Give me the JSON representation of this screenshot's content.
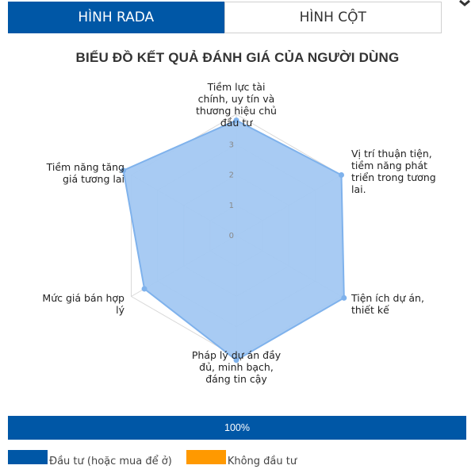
{
  "tabs": [
    {
      "label": "HÌNH RADA",
      "active": true
    },
    {
      "label": "HÌNH CỘT",
      "active": false
    }
  ],
  "chart_data": {
    "type": "radar",
    "title": "BIỂU ĐỒ KẾT QUẢ ĐÁNH GIÁ CỦA NGƯỜI DÙNG",
    "axes": [
      [
        "Tiềm lực tài",
        "chính, uy tín và",
        "thương hiệu chủ",
        "đầu tư"
      ],
      [
        "Vị trí thuận tiện,",
        "tiềm năng phát",
        "triển trong tương",
        "lai."
      ],
      [
        "Tiện ích dự án,",
        "thiết kế"
      ],
      [
        "Pháp lý dự án đầy",
        "đủ, minh bạch,",
        "đáng tin cậy"
      ],
      [
        "Mức giá bán hợp",
        "lý"
      ],
      [
        "Tiềm năng tăng",
        "giá tương lai"
      ]
    ],
    "ticks": [
      "0",
      "1",
      "2",
      "3"
    ],
    "range": [
      0,
      4
    ],
    "values": [
      3.8,
      4.0,
      4.1,
      4.1,
      3.5,
      4.3
    ],
    "colors": {
      "fill": "#a3c8f2",
      "stroke": "#7fb2ec",
      "grid": "#d9d9d9"
    }
  },
  "progress": {
    "label": "100%",
    "value": 1.0,
    "color": "#0057a6"
  },
  "legend": [
    {
      "label": "Đầu tư (hoặc mua để ở)",
      "color": "#0057a6"
    },
    {
      "label": "Không đầu tư",
      "color": "#ff9900"
    }
  ]
}
